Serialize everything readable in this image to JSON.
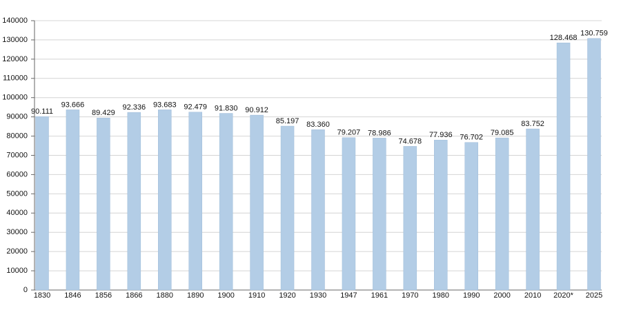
{
  "chart_data": {
    "type": "bar",
    "categories": [
      "1830",
      "1846",
      "1856",
      "1866",
      "1880",
      "1890",
      "1900",
      "1910",
      "1920",
      "1930",
      "1947",
      "1961",
      "1970",
      "1980",
      "1990",
      "2000",
      "2010",
      "2020*",
      "2025"
    ],
    "values": [
      90111,
      93666,
      89429,
      92336,
      93683,
      92479,
      91830,
      90912,
      85197,
      83360,
      79207,
      78986,
      74678,
      77936,
      76702,
      79085,
      83752,
      128468,
      130759
    ],
    "value_labels": [
      "90.111",
      "93.666",
      "89.429",
      "92.336",
      "93.683",
      "92.479",
      "91.830",
      "90.912",
      "85.197",
      "83.360",
      "79.207",
      "78.986",
      "74.678",
      "77.936",
      "76.702",
      "79.085",
      "83.752",
      "128.468",
      "130.759"
    ],
    "color": "#b3cde6",
    "ylim": [
      0,
      140000
    ],
    "yticks": [
      0,
      10000,
      20000,
      30000,
      40000,
      50000,
      60000,
      70000,
      80000,
      90000,
      100000,
      110000,
      120000,
      130000,
      140000
    ],
    "grid": true
  }
}
